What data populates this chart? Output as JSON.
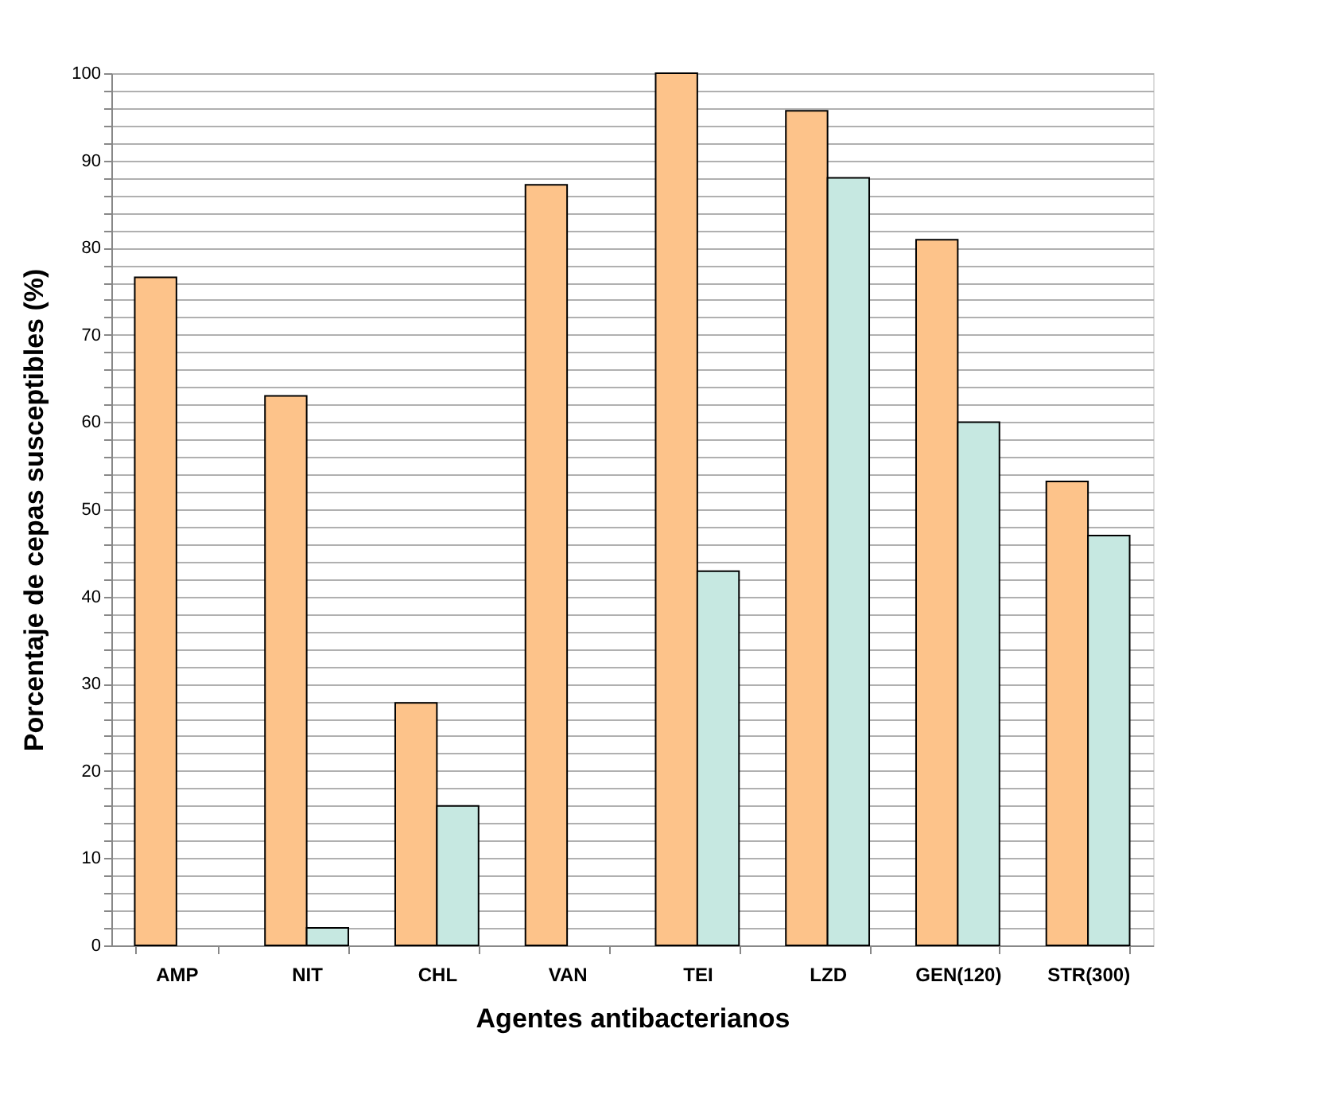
{
  "chart_data": {
    "type": "bar",
    "xlabel": "Agentes antibacterianos",
    "ylabel": "Porcentaje de cepas susceptibles (%)",
    "categories": [
      "AMP",
      "NIT",
      "CHL",
      "VAN",
      "TEI",
      "LZD",
      "GEN(120)",
      "STR(300)"
    ],
    "series": [
      {
        "color": "#fdc38a",
        "values": [
          76.6,
          63.0,
          27.8,
          87.2,
          100.0,
          95.7,
          80.9,
          53.2
        ]
      },
      {
        "color": "#c6e8e1",
        "values": [
          null,
          2.0,
          16.0,
          null,
          42.9,
          88.0,
          60.0,
          47.0
        ]
      }
    ],
    "ylim": [
      0,
      100
    ],
    "yticks": [
      0,
      {
        "value": 2,
        "label": null
      },
      {
        "value": 4,
        "label": null
      },
      {
        "value": 6,
        "label": null
      },
      {
        "value": 8,
        "label": null
      },
      10,
      {
        "value": 12,
        "label": null
      },
      {
        "value": 14,
        "label": null
      },
      {
        "value": 16,
        "label": null
      },
      {
        "value": 18,
        "label": null
      },
      20,
      {
        "value": 22,
        "label": null
      },
      {
        "value": 24,
        "label": null
      },
      {
        "value": 26,
        "label": null
      },
      {
        "value": 28,
        "label": null
      },
      30,
      {
        "value": 32,
        "label": null
      },
      {
        "value": 34,
        "label": null
      },
      {
        "value": 36,
        "label": null
      },
      {
        "value": 38,
        "label": null
      },
      40,
      {
        "value": 42,
        "label": null
      },
      {
        "value": 44,
        "label": null
      },
      {
        "value": 46,
        "label": null
      },
      {
        "value": 48,
        "label": null
      },
      50,
      {
        "value": 52,
        "label": null
      },
      {
        "value": 54,
        "label": null
      },
      {
        "value": 56,
        "label": null
      },
      {
        "value": 58,
        "label": null
      },
      60,
      {
        "value": 62,
        "label": null
      },
      {
        "value": 64,
        "label": null
      },
      {
        "value": 66,
        "label": null
      },
      {
        "value": 68,
        "label": null
      },
      70,
      {
        "value": 72,
        "label": null
      },
      {
        "value": 74,
        "label": null
      },
      {
        "value": 76,
        "label": null
      },
      {
        "value": 78,
        "label": null
      },
      80,
      {
        "value": 82,
        "label": null
      },
      {
        "value": 84,
        "label": null
      },
      {
        "value": 86,
        "label": null
      },
      {
        "value": 88,
        "label": null
      },
      90,
      {
        "value": 92,
        "label": null
      },
      {
        "value": 94,
        "label": null
      },
      {
        "value": 96,
        "label": null
      },
      {
        "value": 98,
        "label": null
      },
      100
    ],
    "grid": "y",
    "legend": false
  }
}
